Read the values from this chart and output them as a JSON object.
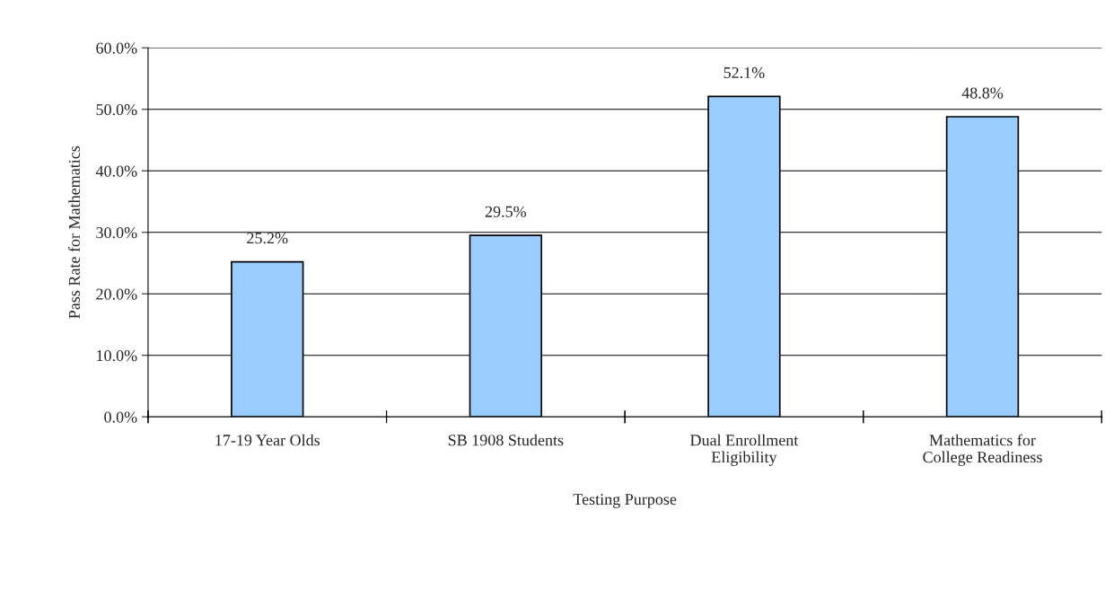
{
  "chart_data": {
    "type": "bar",
    "xlabel": "Testing Purpose",
    "ylabel": "Pass Rate for Mathematics",
    "categories": [
      "17-19 Year Olds",
      "SB 1908 Students",
      "Dual Enrollment\nEligibility",
      "Mathematics for\nCollege Readiness"
    ],
    "values": [
      25.2,
      29.5,
      52.1,
      48.8
    ],
    "value_labels": [
      "25.2%",
      "29.5%",
      "52.1%",
      "48.8%"
    ],
    "color": "#99ccff",
    "ylim": [
      0,
      60
    ],
    "yticks": [
      {
        "value": 0,
        "label": "0.0%"
      },
      {
        "value": 10,
        "label": "10.0%"
      },
      {
        "value": 20,
        "label": "20.0%"
      },
      {
        "value": 30,
        "label": "30.0%"
      },
      {
        "value": 40,
        "label": "40.0%"
      },
      {
        "value": 50,
        "label": "50.0%"
      },
      {
        "value": 60,
        "label": "60.0%"
      }
    ],
    "grid": "y",
    "legend": false
  }
}
